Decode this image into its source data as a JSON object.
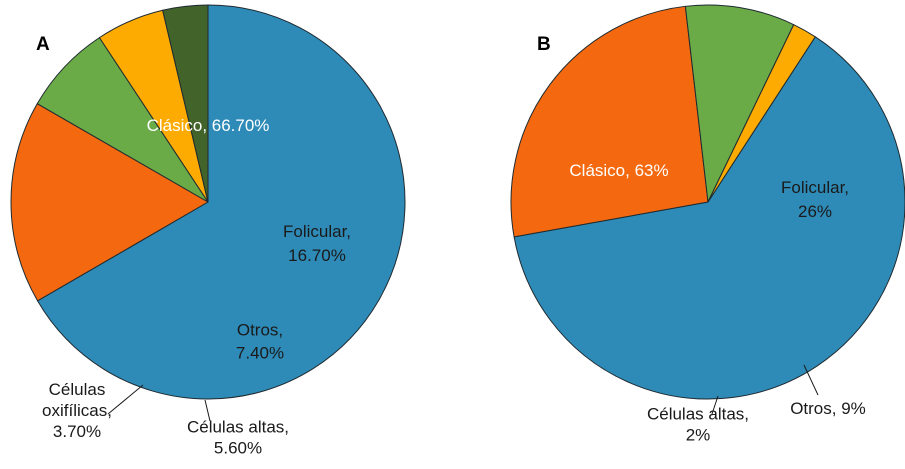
{
  "chart_data": [
    {
      "type": "pie",
      "panel": "A",
      "slices": [
        {
          "label": [
            "Clásico, 66.70%"
          ],
          "value": 66.7,
          "color": "#2e8bb8",
          "text_color": "#ffffff"
        },
        {
          "label": [
            "Folicular,",
            "16.70%"
          ],
          "value": 16.7,
          "color": "#f4690f",
          "text_color": "#1a1a1a"
        },
        {
          "label": [
            "Otros,",
            "7.40%"
          ],
          "value": 7.4,
          "color": "#6aab47",
          "text_color": "#1a1a1a"
        },
        {
          "label": [
            "Células altas,",
            "5.60%"
          ],
          "value": 5.6,
          "color": "#fdab00",
          "text_color": "#1a1a1a"
        },
        {
          "label": [
            "Células",
            "oxifílicas,",
            "3.70%"
          ],
          "value": 3.7,
          "color": "#42632a",
          "text_color": "#1a1a1a"
        }
      ]
    },
    {
      "type": "pie",
      "panel": "B",
      "slices": [
        {
          "label": [
            "Clásico, 63%"
          ],
          "value": 63,
          "color": "#2e8bb8",
          "text_color": "#ffffff"
        },
        {
          "label": [
            "Folicular,",
            "26%"
          ],
          "value": 26,
          "color": "#f4690f",
          "text_color": "#1a1a1a"
        },
        {
          "label": [
            "Otros, 9%"
          ],
          "value": 9,
          "color": "#6aab47",
          "text_color": "#1a1a1a"
        },
        {
          "label": [
            "Células altas,",
            "2%"
          ],
          "value": 2,
          "color": "#fdab00",
          "text_color": "#1a1a1a"
        }
      ]
    }
  ]
}
